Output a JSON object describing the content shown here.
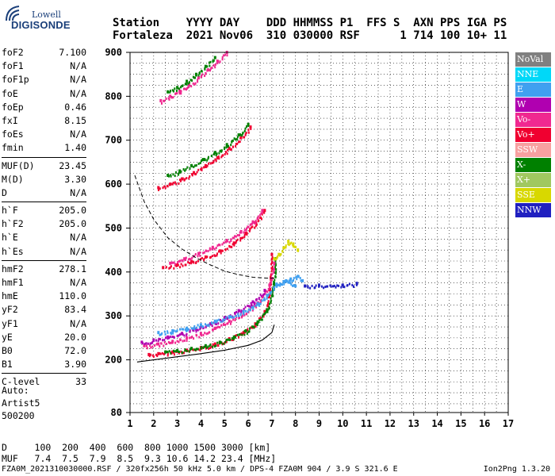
{
  "logo": {
    "top": "Lowell",
    "bottom": "DIGISONDE"
  },
  "header": {
    "line1": "Station    YYYY DAY    DDD HHMMSS P1  FFS S  AXN PPS IGA PS",
    "line2": "Fortaleza  2021 Nov06  310 030000 RSF      1 714 100 10+ 11"
  },
  "params": [
    [
      [
        "foF2",
        "7.100"
      ],
      [
        "foF1",
        "N/A"
      ],
      [
        "foF1p",
        "N/A"
      ],
      [
        "foE",
        "N/A"
      ],
      [
        "foEp",
        "0.46"
      ],
      [
        "fxI",
        "8.15"
      ],
      [
        "foEs",
        "N/A"
      ],
      [
        "fmin",
        "1.40"
      ]
    ],
    [
      [
        "MUF(D)",
        "23.45"
      ],
      [
        "M(D)",
        "3.30"
      ],
      [
        "D",
        "N/A"
      ]
    ],
    [
      [
        "h`F",
        "205.0"
      ],
      [
        "h`F2",
        "205.0"
      ],
      [
        "h`E",
        "N/A"
      ],
      [
        "h`Es",
        "N/A"
      ]
    ],
    [
      [
        "hmF2",
        "278.1"
      ],
      [
        "hmF1",
        "N/A"
      ],
      [
        "hmE",
        "110.0"
      ],
      [
        "yF2",
        "83.4"
      ],
      [
        "yF1",
        "N/A"
      ],
      [
        "yE",
        "20.0"
      ],
      [
        "B0",
        "72.0"
      ],
      [
        "B1",
        "3.90"
      ]
    ],
    [
      [
        "C-level",
        "33"
      ]
    ]
  ],
  "auto": {
    "line1": "Auto:",
    "line2": "Artist5",
    "line3": "500200"
  },
  "legend": [
    {
      "label": "NoVal",
      "color": "#808080"
    },
    {
      "label": "NNE",
      "color": "#00d8f8"
    },
    {
      "label": "E",
      "color": "#40a0f0"
    },
    {
      "label": "W",
      "color": "#b000b0"
    },
    {
      "label": "Vo-",
      "color": "#f02890"
    },
    {
      "label": "Vo+",
      "color": "#f00030"
    },
    {
      "label": "SSW",
      "color": "#f8a0a0"
    },
    {
      "label": "X-",
      "color": "#008000"
    },
    {
      "label": "X+",
      "color": "#a0c860"
    },
    {
      "label": "SSE",
      "color": "#d8d800"
    },
    {
      "label": "NNW",
      "color": "#2020c0"
    }
  ],
  "chart_data": {
    "type": "scatter",
    "title": "",
    "xlabel": "",
    "ylabel": "",
    "xlim": [
      1,
      17
    ],
    "ylim": [
      80,
      900
    ],
    "x_ticks": [
      1,
      2,
      3,
      4,
      5,
      6,
      7,
      8,
      9,
      10,
      11,
      12,
      13,
      14,
      15,
      16,
      17
    ],
    "y_ticks": [
      80,
      200,
      300,
      400,
      500,
      600,
      700,
      800,
      900
    ],
    "grid": true,
    "traces": [
      {
        "name": "Vo+",
        "color": "#f00030",
        "x": [
          1.8,
          2.2,
          2.8,
          3.4,
          4.0,
          4.6,
          5.2,
          5.8,
          6.3,
          6.7,
          6.9,
          7.0
        ],
        "y": [
          212,
          214,
          218,
          222,
          228,
          236,
          248,
          262,
          282,
          310,
          360,
          440
        ]
      },
      {
        "name": "X-",
        "color": "#008000",
        "x": [
          2.5,
          3.0,
          3.6,
          4.2,
          4.8,
          5.4,
          5.9,
          6.4,
          6.8,
          7.05,
          7.15
        ],
        "y": [
          218,
          221,
          226,
          232,
          240,
          252,
          266,
          286,
          314,
          360,
          430
        ]
      },
      {
        "name": "Vo-",
        "color": "#f02890",
        "x": [
          1.6,
          2.2,
          2.8,
          3.4,
          4.0,
          4.6,
          5.2,
          5.8,
          6.4,
          6.9,
          7.1
        ],
        "y": [
          232,
          236,
          242,
          250,
          260,
          272,
          288,
          306,
          330,
          370,
          420
        ]
      },
      {
        "name": "W",
        "color": "#b000b0",
        "x": [
          1.5,
          2.0,
          2.6,
          3.2,
          3.8,
          4.4,
          5.0,
          5.6,
          6.2,
          6.7
        ],
        "y": [
          240,
          245,
          252,
          260,
          270,
          282,
          296,
          312,
          332,
          358
        ]
      },
      {
        "name": "E",
        "color": "#40a0f0",
        "x": [
          2.2,
          2.8,
          3.4,
          4.0,
          4.6,
          5.2,
          5.8,
          6.4,
          6.8,
          7.2,
          7.6,
          8.0
        ],
        "y": [
          262,
          266,
          272,
          280,
          288,
          298,
          310,
          328,
          346,
          372,
          380,
          368
        ]
      },
      {
        "name": "Vo+",
        "color": "#f00030",
        "x": [
          2.4,
          3.0,
          3.6,
          4.2,
          4.8,
          5.4,
          5.9,
          6.3,
          6.7
        ],
        "y": [
          410,
          416,
          424,
          434,
          448,
          466,
          488,
          512,
          540
        ]
      },
      {
        "name": "Vo-",
        "color": "#f02890",
        "x": [
          2.7,
          3.3,
          3.9,
          4.5,
          5.1,
          5.7,
          6.2,
          6.6
        ],
        "y": [
          420,
          430,
          442,
          456,
          472,
          492,
          514,
          540
        ]
      },
      {
        "name": "Vo+",
        "color": "#f00030",
        "x": [
          2.2,
          2.7,
          3.2,
          3.7,
          4.2,
          4.7,
          5.2,
          5.7,
          6.1
        ],
        "y": [
          592,
          600,
          612,
          626,
          642,
          660,
          682,
          706,
          730
        ]
      },
      {
        "name": "X-",
        "color": "#008000",
        "x": [
          2.6,
          3.1,
          3.6,
          4.1,
          4.6,
          5.1,
          5.6,
          6.0
        ],
        "y": [
          620,
          630,
          642,
          656,
          672,
          690,
          712,
          736
        ]
      },
      {
        "name": "Vo-",
        "color": "#f02890",
        "x": [
          2.3,
          2.7,
          3.1,
          3.5,
          3.9,
          4.3,
          4.7,
          5.1
        ],
        "y": [
          790,
          800,
          812,
          826,
          842,
          860,
          880,
          900
        ]
      },
      {
        "name": "X-",
        "color": "#008000",
        "x": [
          2.6,
          3.0,
          3.4,
          3.8,
          4.2,
          4.6
        ],
        "y": [
          810,
          820,
          834,
          850,
          868,
          888
        ]
      },
      {
        "name": "SSE",
        "color": "#d8d800",
        "x": [
          7.1,
          7.3,
          7.5,
          7.7,
          7.9,
          8.1
        ],
        "y": [
          430,
          440,
          455,
          470,
          462,
          450
        ]
      },
      {
        "name": "E",
        "color": "#40a0f0",
        "x": [
          7.2,
          7.5,
          7.8,
          8.1,
          8.3
        ],
        "y": [
          372,
          378,
          384,
          390,
          380
        ]
      },
      {
        "name": "NNW",
        "color": "#2020c0",
        "x": [
          8.4,
          9.0,
          10.0,
          10.6
        ],
        "y": [
          368,
          370,
          370,
          374
        ]
      }
    ],
    "profile": {
      "x": [
        1.3,
        2.0,
        3.0,
        4.0,
        5.0,
        6.0,
        6.6,
        7.0,
        7.1
      ],
      "y": [
        195,
        200,
        207,
        214,
        222,
        233,
        245,
        262,
        280
      ]
    },
    "dashed": {
      "x": [
        1.2,
        1.6,
        2.0,
        2.6,
        3.2,
        3.8,
        4.4,
        5.0,
        5.6,
        6.2,
        6.8,
        7.1
      ],
      "y": [
        620,
        560,
        520,
        478,
        452,
        432,
        416,
        402,
        394,
        388,
        386,
        386
      ]
    }
  },
  "footer": {
    "line1": "D     100  200  400  600  800 1000 1500 3000 [km]",
    "line2": "MUF   7.4  7.5  7.9  8.5  9.3 10.6 14.2 23.4 [MHz]",
    "line3": "FZA0M_2021310030000.RSF / 320fx256h 50 kHz 5.0 km / DPS-4 FZA0M 904 / 3.9 S 321.6 E",
    "line4": "Ion2Png 1.3.20"
  }
}
